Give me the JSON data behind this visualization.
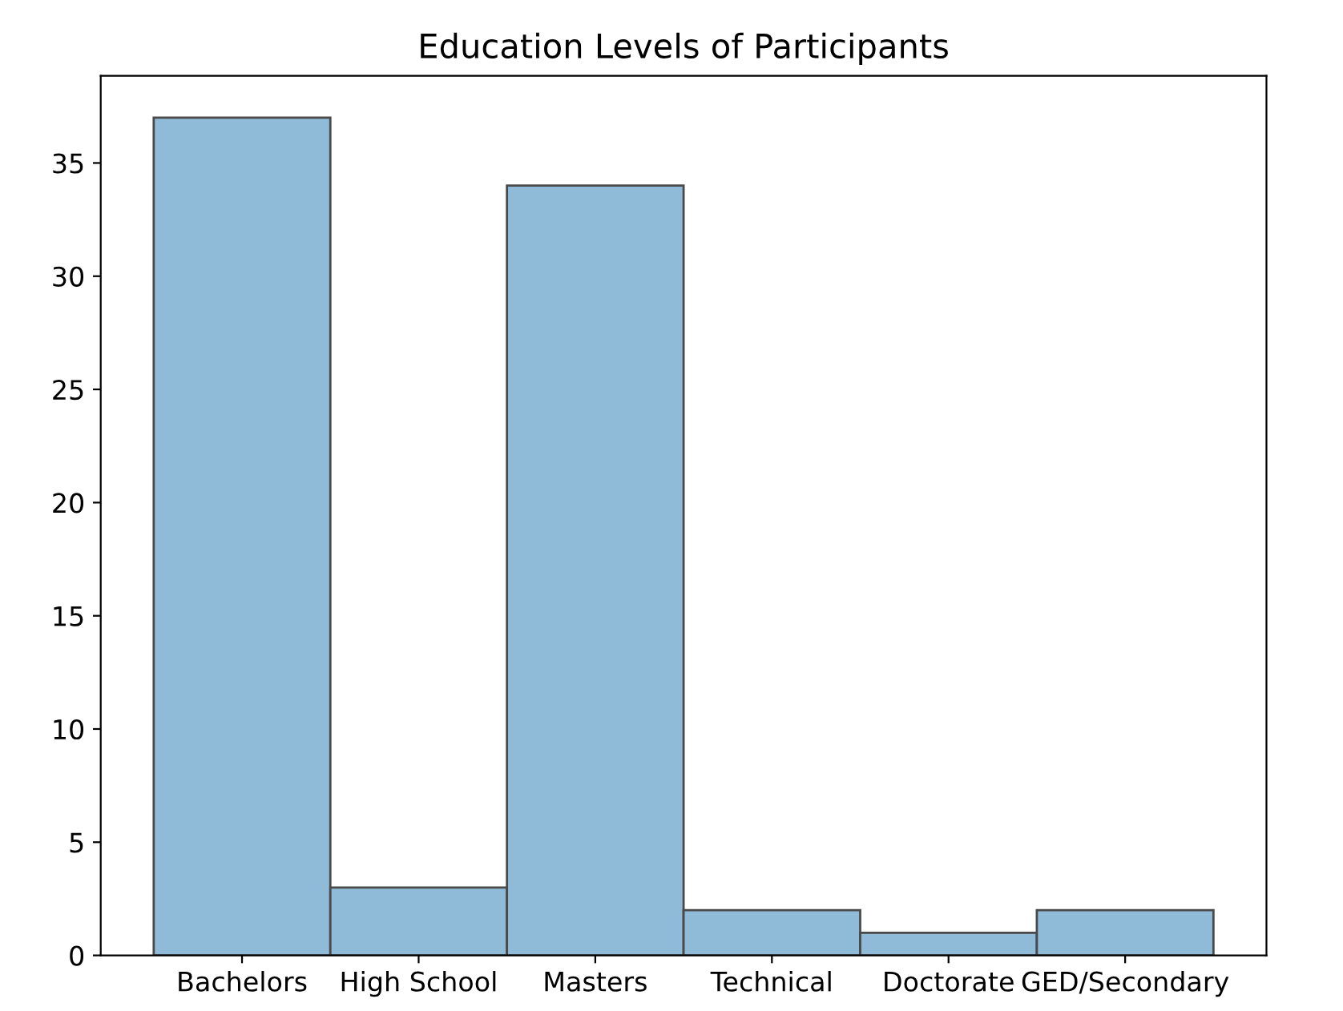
{
  "chart_data": {
    "type": "bar",
    "title": "Education Levels of Participants",
    "categories": [
      "Bachelors",
      "High School",
      "Masters",
      "Technical",
      "Doctorate",
      "GED/Secondary"
    ],
    "values": [
      37,
      3,
      34,
      2,
      1,
      2
    ],
    "color": "#8fbbd9",
    "ylim": [
      0,
      38.85
    ],
    "yticks": [
      0,
      5,
      10,
      15,
      20,
      25,
      30,
      35
    ],
    "grid": false
  }
}
